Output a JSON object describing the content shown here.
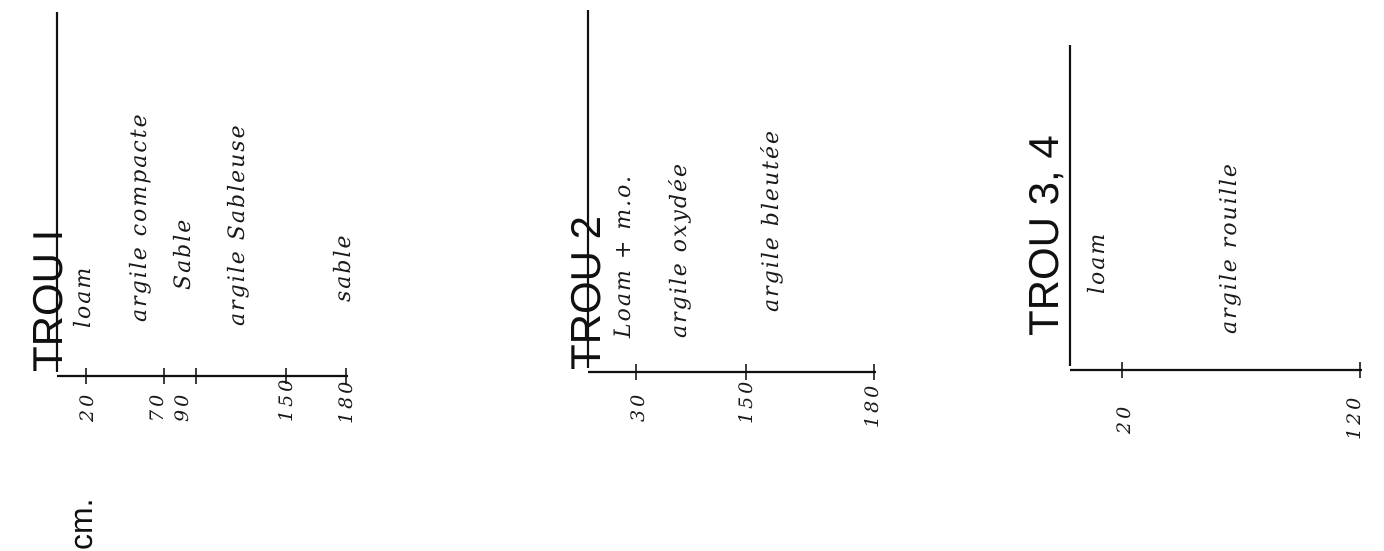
{
  "unit_label": "cm.",
  "profiles": [
    {
      "title": "TROU     I",
      "depths": [
        "20",
        "70",
        "90",
        "150",
        "180"
      ],
      "layers": [
        "loam",
        "argile compacte",
        "Sable",
        "argile Sableuse",
        "sable"
      ]
    },
    {
      "title": "TROU    2",
      "depths": [
        "30",
        "150",
        "180"
      ],
      "layers": [
        "Loam + m.o.",
        "argile oxydée",
        "argile bleutée"
      ]
    },
    {
      "title": "TROU    3, 4",
      "depths": [
        "20",
        "120"
      ],
      "layers": [
        "loam",
        "argile rouille"
      ]
    }
  ]
}
